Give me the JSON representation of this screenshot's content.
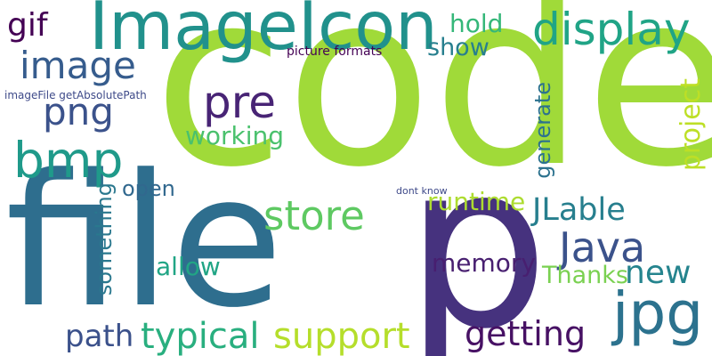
{
  "words": [
    {
      "id": "code",
      "text": "code",
      "color": "#a0da39"
    },
    {
      "id": "file",
      "text": "file",
      "color": "#2e6e8e"
    },
    {
      "id": "p",
      "text": "p",
      "color": "#46327e"
    },
    {
      "id": "imageicon",
      "text": "ImageIcon",
      "color": "#21918c"
    },
    {
      "id": "display",
      "text": "display",
      "color": "#20a486"
    },
    {
      "id": "image",
      "text": "image",
      "color": "#365c8d"
    },
    {
      "id": "gif",
      "text": "gif",
      "color": "#440154"
    },
    {
      "id": "bmp",
      "text": "bmp",
      "color": "#1f9a8a"
    },
    {
      "id": "png",
      "text": "png",
      "color": "#3b528b"
    },
    {
      "id": "pre",
      "text": "pre",
      "color": "#482475"
    },
    {
      "id": "working",
      "text": "working",
      "color": "#4ac16d"
    },
    {
      "id": "hold",
      "text": "hold",
      "color": "#35b779"
    },
    {
      "id": "show",
      "text": "show",
      "color": "#277f8e"
    },
    {
      "id": "picture-formats",
      "text": "picture formats",
      "color": "#440154"
    },
    {
      "id": "imagefile",
      "text": "imageFile getAbsolutePath",
      "color": "#3e4a89"
    },
    {
      "id": "project",
      "text": "project",
      "color": "#bddf26"
    },
    {
      "id": "generate",
      "text": "generate",
      "color": "#2c728e"
    },
    {
      "id": "store",
      "text": "store",
      "color": "#5ec962"
    },
    {
      "id": "open",
      "text": "open",
      "color": "#31688e"
    },
    {
      "id": "runtime",
      "text": "runtime",
      "color": "#addc30"
    },
    {
      "id": "dont-know",
      "text": "dont know",
      "color": "#3e4989"
    },
    {
      "id": "jlable",
      "text": "JLable",
      "color": "#277f8e"
    },
    {
      "id": "java",
      "text": "Java",
      "color": "#3b528b"
    },
    {
      "id": "something",
      "text": "something",
      "color": "#2a788e"
    },
    {
      "id": "allow",
      "text": "allow",
      "color": "#21a585"
    },
    {
      "id": "memory",
      "text": "memory",
      "color": "#481f70"
    },
    {
      "id": "thanks",
      "text": "Thanks",
      "color": "#7ad151"
    },
    {
      "id": "new",
      "text": "new",
      "color": "#25848e"
    },
    {
      "id": "jpg",
      "text": "jpg",
      "color": "#2c728e"
    },
    {
      "id": "path",
      "text": "path",
      "color": "#3b518b"
    },
    {
      "id": "typical",
      "text": "typical",
      "color": "#29af7f"
    },
    {
      "id": "support",
      "text": "support",
      "color": "#b5de2b"
    },
    {
      "id": "getting",
      "text": "getting",
      "color": "#471164"
    }
  ]
}
